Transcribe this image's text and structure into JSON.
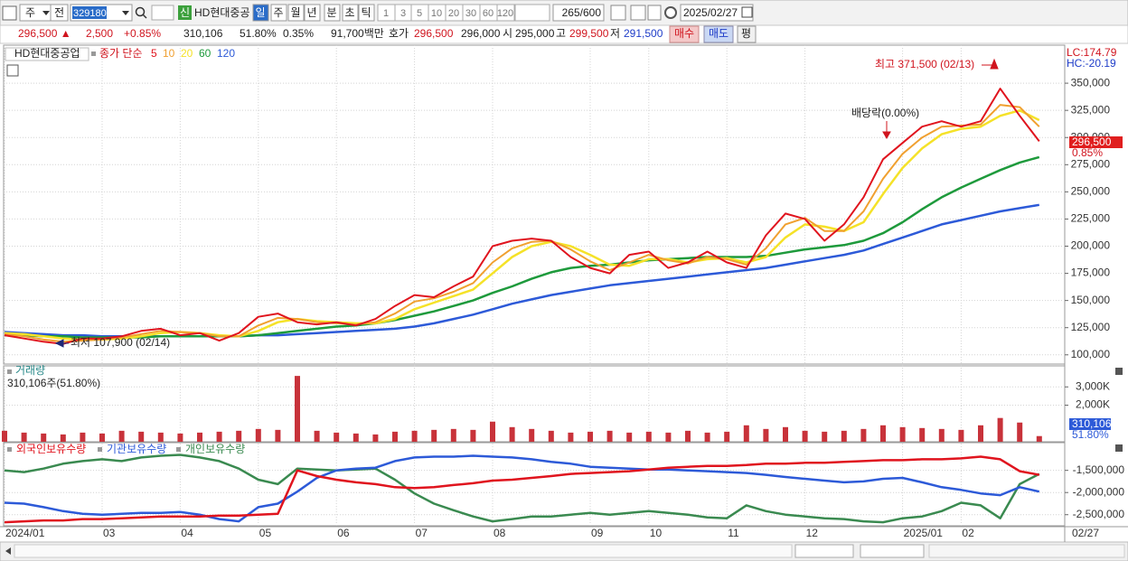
{
  "toolbar": {
    "market": "주",
    "prev": "전",
    "code": "329180",
    "new_badge": "신",
    "name": "HD현대중공",
    "periods": [
      "일",
      "주",
      "월",
      "년",
      "분",
      "초",
      "틱"
    ],
    "intervals": [
      "1",
      "3",
      "5",
      "10",
      "20",
      "30",
      "60",
      "120"
    ],
    "count": "265/600",
    "date": "2025/02/27"
  },
  "quote": {
    "price": "296,500 ▲",
    "change": "2,500",
    "change_pct": "+0.85%",
    "volume": "310,106",
    "volume_pct": "51.80%",
    "turnover": "0.35%",
    "amount": "91,700백만",
    "ask_label": "호가",
    "ask": "296,500",
    "bid": "296,000",
    "open_label": "시",
    "open": "295,000",
    "high_label": "고",
    "high": "299,500",
    "low_label": "저",
    "low": "291,500",
    "buy": "매수",
    "sell": "매도",
    "avg": "평"
  },
  "chart_data": [
    {
      "type": "line",
      "title": "HD현대중공업",
      "legend_prefix": "종가 단순",
      "categories": [
        "2024/01",
        null,
        null,
        null,
        null,
        "03",
        null,
        null,
        null,
        "04",
        null,
        null,
        null,
        "05",
        null,
        null,
        null,
        "06",
        null,
        null,
        null,
        "07",
        null,
        null,
        null,
        "08",
        null,
        null,
        null,
        null,
        "09",
        null,
        null,
        "10",
        null,
        null,
        null,
        "11",
        null,
        null,
        null,
        "12",
        null,
        null,
        null,
        null,
        "2025/01",
        null,
        null,
        "02",
        null,
        null,
        null,
        null
      ],
      "x_last_label": "02/27",
      "series": [
        {
          "name": "5",
          "color": "#e0141e",
          "values": [
            118000,
            115000,
            112000,
            110000,
            115000,
            115000,
            117000,
            122000,
            124000,
            118000,
            120000,
            113000,
            120000,
            135000,
            138000,
            130000,
            128000,
            130000,
            127000,
            133000,
            145000,
            155000,
            153000,
            163000,
            172000,
            200000,
            205000,
            207000,
            205000,
            190000,
            180000,
            175000,
            192000,
            195000,
            180000,
            185000,
            195000,
            185000,
            180000,
            210000,
            230000,
            225000,
            205000,
            220000,
            245000,
            280000,
            295000,
            310000,
            315000,
            310000,
            315000,
            345000,
            320000,
            296500
          ]
        },
        {
          "name": "10",
          "color": "#f0a030",
          "values": [
            119000,
            117000,
            114000,
            112000,
            113000,
            114000,
            116000,
            119000,
            122000,
            121000,
            120000,
            117000,
            117000,
            127000,
            134000,
            133000,
            130000,
            129000,
            128000,
            130000,
            138000,
            149000,
            152000,
            158000,
            166000,
            185000,
            198000,
            204000,
            205000,
            197000,
            186000,
            178000,
            185000,
            192000,
            187000,
            184000,
            190000,
            188000,
            183000,
            198000,
            220000,
            226000,
            214000,
            214000,
            232000,
            262000,
            285000,
            300000,
            310000,
            311000,
            312000,
            330000,
            328000,
            310000
          ]
        },
        {
          "name": "20",
          "color": "#f5e228",
          "values": [
            120000,
            119000,
            117000,
            115000,
            114000,
            114000,
            115000,
            117000,
            120000,
            121000,
            120000,
            118000,
            117000,
            122000,
            130000,
            133000,
            131000,
            130000,
            129000,
            129000,
            133000,
            142000,
            148000,
            154000,
            160000,
            175000,
            190000,
            200000,
            204000,
            200000,
            192000,
            183000,
            182000,
            188000,
            188000,
            185000,
            188000,
            189000,
            185000,
            190000,
            208000,
            220000,
            218000,
            214000,
            222000,
            248000,
            272000,
            290000,
            303000,
            308000,
            310000,
            320000,
            325000,
            316000
          ]
        },
        {
          "name": "60",
          "color": "#1e9a3c",
          "values": [
            118000,
            118000,
            117000,
            117000,
            116000,
            116000,
            116000,
            116000,
            117000,
            117000,
            117000,
            117000,
            117000,
            118000,
            120000,
            122000,
            124000,
            126000,
            127000,
            129000,
            132000,
            136000,
            140000,
            145000,
            150000,
            157000,
            163000,
            170000,
            176000,
            180000,
            182000,
            183000,
            185000,
            187000,
            188000,
            189000,
            190000,
            190000,
            190000,
            191000,
            194000,
            197000,
            199000,
            201000,
            205000,
            212000,
            222000,
            234000,
            245000,
            254000,
            262000,
            270000,
            277000,
            282000
          ]
        },
        {
          "name": "120",
          "color": "#2d5ad8",
          "values": [
            121000,
            120000,
            119000,
            118000,
            118000,
            117000,
            117000,
            117000,
            117000,
            117000,
            117000,
            117000,
            117000,
            118000,
            118000,
            119000,
            120000,
            121000,
            122000,
            123000,
            124000,
            126000,
            129000,
            133000,
            137000,
            142000,
            147000,
            151000,
            155000,
            158000,
            161000,
            164000,
            166000,
            168000,
            170000,
            172000,
            174000,
            176000,
            178000,
            180000,
            183000,
            186000,
            189000,
            192000,
            196000,
            202000,
            208000,
            214000,
            220000,
            224000,
            228000,
            232000,
            235000,
            238000
          ]
        }
      ],
      "ylim": [
        91500,
        385000
      ],
      "yticks": [
        {
          "value": 100000,
          "label": "100,000"
        },
        {
          "value": 125000,
          "label": "125,000"
        },
        {
          "value": 150000,
          "label": "150,000"
        },
        {
          "value": 175000,
          "label": "175,000"
        },
        {
          "value": 200000,
          "label": "200,000"
        },
        {
          "value": 225000,
          "label": "225,000"
        },
        {
          "value": 250000,
          "label": "250,000"
        },
        {
          "value": 275000,
          "label": "275,000"
        },
        {
          "value": 300000,
          "label": "300,000"
        },
        {
          "value": 325000,
          "label": "325,000"
        },
        {
          "value": 350000,
          "label": "350,000"
        }
      ],
      "grid": true,
      "annotations": [
        "최고 371,500 (02/13)",
        "최저 107,900 (02/14)",
        "배당락(0.00%)"
      ],
      "lc": "LC:174.79",
      "hc": "HC:-20.19",
      "last_label": "296,500",
      "last_change": "0.85%"
    },
    {
      "type": "bar",
      "title": "거래량",
      "subtitle": "310,106주(51.80%)",
      "color": "#c8323a",
      "values": [
        600000,
        500000,
        450000,
        400000,
        500000,
        450000,
        600000,
        550000,
        500000,
        450000,
        500000,
        550000,
        600000,
        700000,
        650000,
        3600000,
        600000,
        500000,
        450000,
        400000,
        550000,
        600000,
        650000,
        700000,
        650000,
        1100000,
        800000,
        700000,
        600000,
        500000,
        550000,
        600000,
        500000,
        550000,
        500000,
        600000,
        500000,
        550000,
        900000,
        700000,
        800000,
        600000,
        550000,
        600000,
        700000,
        900000,
        800000,
        750000,
        700000,
        650000,
        900000,
        1300000,
        1050000,
        310106
      ],
      "ylim": [
        0,
        4150000
      ],
      "yticks": [
        {
          "value": 2000000,
          "label": "2,000K"
        },
        {
          "value": 3000000,
          "label": "3,000K"
        }
      ],
      "last_label": "310,106",
      "last_pct": "51.80%"
    },
    {
      "type": "line",
      "series": [
        {
          "name": "외국인보유수량",
          "color": "#e0141e",
          "values": [
            -2670000,
            -2650000,
            -2630000,
            -2630000,
            -2600000,
            -2600000,
            -2580000,
            -2560000,
            -2540000,
            -2540000,
            -2540000,
            -2520000,
            -2520000,
            -2500000,
            -2480000,
            -1500000,
            -1630000,
            -1710000,
            -1770000,
            -1810000,
            -1880000,
            -1900000,
            -1880000,
            -1830000,
            -1790000,
            -1730000,
            -1710000,
            -1670000,
            -1630000,
            -1580000,
            -1560000,
            -1540000,
            -1520000,
            -1480000,
            -1440000,
            -1420000,
            -1400000,
            -1400000,
            -1380000,
            -1350000,
            -1350000,
            -1330000,
            -1330000,
            -1310000,
            -1290000,
            -1270000,
            -1270000,
            -1250000,
            -1250000,
            -1230000,
            -1190000,
            -1250000,
            -1520000,
            -1600000
          ]
        },
        {
          "name": "기관보유수량",
          "color": "#2d5ad8",
          "values": [
            -2230000,
            -2250000,
            -2330000,
            -2420000,
            -2480000,
            -2500000,
            -2480000,
            -2460000,
            -2460000,
            -2440000,
            -2500000,
            -2600000,
            -2650000,
            -2330000,
            -2250000,
            -1980000,
            -1670000,
            -1500000,
            -1460000,
            -1440000,
            -1290000,
            -1210000,
            -1190000,
            -1190000,
            -1170000,
            -1190000,
            -1210000,
            -1250000,
            -1310000,
            -1350000,
            -1420000,
            -1440000,
            -1460000,
            -1480000,
            -1480000,
            -1500000,
            -1520000,
            -1540000,
            -1560000,
            -1600000,
            -1650000,
            -1690000,
            -1730000,
            -1770000,
            -1750000,
            -1690000,
            -1670000,
            -1770000,
            -1880000,
            -1940000,
            -2020000,
            -2060000,
            -1880000,
            -1980000
          ]
        },
        {
          "name": "개인보유수량",
          "color": "#3a8a50",
          "values": [
            -1500000,
            -1540000,
            -1460000,
            -1350000,
            -1290000,
            -1250000,
            -1290000,
            -1210000,
            -1170000,
            -1150000,
            -1210000,
            -1290000,
            -1460000,
            -1710000,
            -1810000,
            -1460000,
            -1480000,
            -1500000,
            -1480000,
            -1460000,
            -1710000,
            -2020000,
            -2250000,
            -2400000,
            -2540000,
            -2650000,
            -2600000,
            -2540000,
            -2540000,
            -2500000,
            -2460000,
            -2500000,
            -2460000,
            -2420000,
            -2460000,
            -2500000,
            -2560000,
            -2580000,
            -2290000,
            -2420000,
            -2500000,
            -2540000,
            -2580000,
            -2600000,
            -2650000,
            -2670000,
            -2580000,
            -2540000,
            -2420000,
            -2230000,
            -2290000,
            -2580000,
            -1810000,
            -1580000
          ]
        }
      ],
      "ylim": [
        -2750000,
        -875000
      ],
      "yticks": [
        {
          "value": -2500000,
          "label": "-2,500,000"
        },
        {
          "value": -2000000,
          "label": "-2,000,000"
        },
        {
          "value": -1500000,
          "label": "-1,500,000"
        }
      ]
    }
  ]
}
